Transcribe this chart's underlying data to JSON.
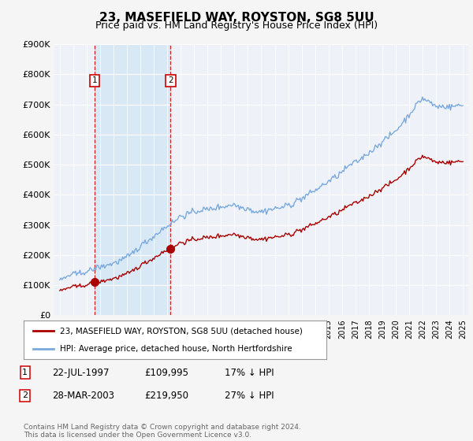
{
  "title": "23, MASEFIELD WAY, ROYSTON, SG8 5UU",
  "subtitle": "Price paid vs. HM Land Registry's House Price Index (HPI)",
  "ylim": [
    0,
    900000
  ],
  "yticks": [
    0,
    100000,
    200000,
    300000,
    400000,
    500000,
    600000,
    700000,
    800000,
    900000
  ],
  "ytick_labels": [
    "£0",
    "£100K",
    "£200K",
    "£300K",
    "£400K",
    "£500K",
    "£600K",
    "£700K",
    "£800K",
    "£900K"
  ],
  "x_start_year": 1995,
  "x_end_year": 2025,
  "hpi_color": "#7aaadd",
  "price_color": "#aa0000",
  "shade_color": "#d8e8f5",
  "sale1_year": 1997.58,
  "sale1_price": 109995,
  "sale2_year": 2003.24,
  "sale2_price": 219950,
  "legend1_text": "23, MASEFIELD WAY, ROYSTON, SG8 5UU (detached house)",
  "legend2_text": "HPI: Average price, detached house, North Hertfordshire",
  "table_row1": [
    "1",
    "22-JUL-1997",
    "£109,995",
    "17% ↓ HPI"
  ],
  "table_row2": [
    "2",
    "28-MAR-2003",
    "£219,950",
    "27% ↓ HPI"
  ],
  "footnote": "Contains HM Land Registry data © Crown copyright and database right 2024.\nThis data is licensed under the Open Government Licence v3.0.",
  "bg_color": "#f5f5f5",
  "plot_bg_color": "#eef2f8",
  "title_fontsize": 11,
  "subtitle_fontsize": 9,
  "tick_fontsize": 8
}
